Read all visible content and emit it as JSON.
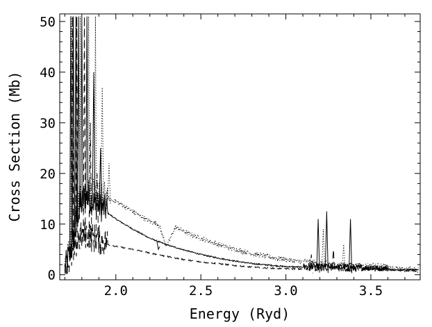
{
  "chart_data": {
    "type": "line",
    "title": "",
    "xlabel": "Energy (Ryd)",
    "ylabel": "Cross Section (Mb)",
    "xlim": [
      1.67,
      3.79
    ],
    "ylim": [
      -1,
      51.5
    ],
    "x_ticks": [
      2.0,
      2.5,
      3.0,
      3.5
    ],
    "x_tick_labels": [
      "2.0",
      "2.5",
      "3.0",
      "3.5"
    ],
    "y_ticks": [
      0,
      10,
      20,
      30,
      40,
      50
    ],
    "y_tick_labels": [
      "0",
      "10",
      "20",
      "30",
      "40",
      "50"
    ],
    "grid": false,
    "legend": "none",
    "series": [
      {
        "name": "solid",
        "style": "solid",
        "x": [
          1.7,
          1.74,
          1.78,
          1.82,
          1.86,
          1.9,
          1.93,
          1.96,
          2.0,
          2.05,
          2.1,
          2.2,
          2.3,
          2.4,
          2.5,
          2.6,
          2.7,
          2.8,
          2.9,
          3.0,
          3.1,
          3.2,
          3.3,
          3.4,
          3.5,
          3.6,
          3.7,
          3.78
        ],
        "y": [
          0.5,
          5.0,
          12.0,
          15.0,
          14.0,
          13.0,
          12.5,
          12.0,
          11.0,
          10.0,
          9.0,
          7.2,
          5.9,
          4.9,
          4.0,
          3.3,
          2.7,
          2.2,
          1.9,
          1.6,
          1.5,
          1.4,
          1.3,
          1.2,
          1.1,
          1.0,
          1.0,
          1.0
        ],
        "resonances": [
          {
            "x": 1.735,
            "peak": 51
          },
          {
            "x": 1.75,
            "peak": 51
          },
          {
            "x": 1.765,
            "peak": 51
          },
          {
            "x": 1.78,
            "peak": 51
          },
          {
            "x": 1.8,
            "peak": 51
          },
          {
            "x": 1.83,
            "peak": 51
          },
          {
            "x": 1.87,
            "peak": 40
          },
          {
            "x": 1.91,
            "peak": 25
          },
          {
            "x": 2.25,
            "peak": 5
          },
          {
            "x": 3.19,
            "peak": 11
          },
          {
            "x": 3.24,
            "peak": 12.5
          },
          {
            "x": 3.38,
            "peak": 11
          }
        ]
      },
      {
        "name": "dotted",
        "style": "dotted",
        "x": [
          1.7,
          1.74,
          1.78,
          1.82,
          1.86,
          1.9,
          1.93,
          1.96,
          2.0,
          2.05,
          2.1,
          2.15,
          2.2,
          2.25,
          2.3,
          2.35,
          2.4,
          2.5,
          2.6,
          2.7,
          2.8,
          2.9,
          3.0,
          3.1,
          3.2,
          3.3,
          3.4,
          3.5,
          3.6,
          3.7,
          3.78
        ],
        "y": [
          0.5,
          6.0,
          14.0,
          16.0,
          15.5,
          15.0,
          15.0,
          15.0,
          14.5,
          13.5,
          12.5,
          11.5,
          10.5,
          10.0,
          5.5,
          9.5,
          8.5,
          7.2,
          6.0,
          5.0,
          4.2,
          3.5,
          3.0,
          2.5,
          2.0,
          1.8,
          1.6,
          1.5,
          1.3,
          1.1,
          1.0
        ],
        "resonances": [
          {
            "x": 1.74,
            "peak": 51
          },
          {
            "x": 1.79,
            "peak": 51
          },
          {
            "x": 1.84,
            "peak": 51
          },
          {
            "x": 1.88,
            "peak": 51
          },
          {
            "x": 1.92,
            "peak": 37
          },
          {
            "x": 1.96,
            "peak": 22
          },
          {
            "x": 3.22,
            "peak": 9
          },
          {
            "x": 3.34,
            "peak": 6
          }
        ]
      },
      {
        "name": "dashed",
        "style": "dashed",
        "x": [
          1.7,
          1.74,
          1.78,
          1.82,
          1.86,
          1.9,
          1.93,
          1.96,
          2.0,
          2.1,
          2.2,
          2.3,
          2.4,
          2.5,
          2.6,
          2.7,
          2.8,
          2.9,
          3.0,
          3.1,
          3.2,
          3.3,
          3.4,
          3.5,
          3.6,
          3.7,
          3.78
        ],
        "y": [
          0.3,
          3.0,
          6.5,
          7.5,
          6.8,
          6.3,
          6.0,
          5.9,
          5.6,
          5.0,
          4.3,
          3.6,
          3.0,
          2.5,
          2.2,
          1.8,
          1.5,
          1.3,
          1.2,
          1.1,
          1.0,
          1.0,
          0.9,
          0.9,
          0.9,
          0.8,
          0.8
        ],
        "resonances": [
          {
            "x": 1.745,
            "peak": 51
          },
          {
            "x": 1.77,
            "peak": 51
          },
          {
            "x": 1.815,
            "peak": 51
          },
          {
            "x": 1.85,
            "peak": 30
          },
          {
            "x": 1.89,
            "peak": 20
          },
          {
            "x": 3.15,
            "peak": 4
          },
          {
            "x": 3.28,
            "peak": 5
          }
        ]
      }
    ]
  }
}
